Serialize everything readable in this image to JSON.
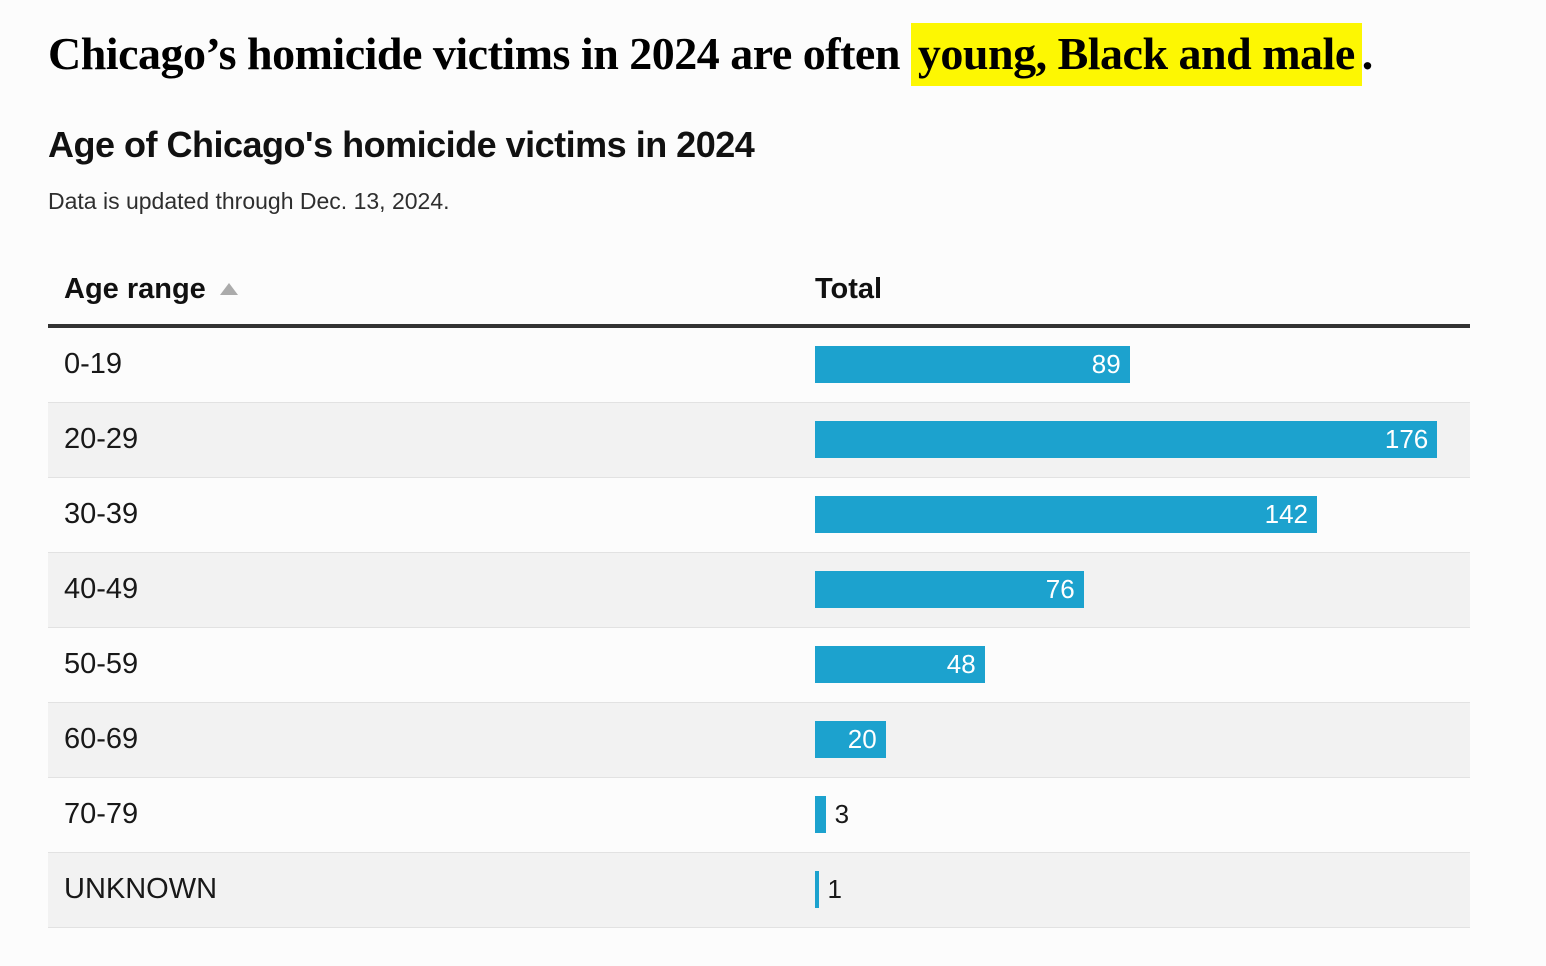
{
  "headline": {
    "prefix": "Chicago’s homicide victims in 2024 are often ",
    "highlight": "young, Black and male",
    "suffix": "."
  },
  "chart": {
    "title": "Age of Chicago's homicide victims in 2024",
    "subtitle": "Data is updated through Dec. 13, 2024.",
    "columns": {
      "age_label": "Age range",
      "total_label": "Total",
      "sort_state": "ascending"
    }
  },
  "icons": {
    "sort_ascending": "triangle-up"
  },
  "chart_data": {
    "type": "bar",
    "orientation": "horizontal",
    "title": "Age of Chicago's homicide victims in 2024",
    "subtitle": "Data is updated through Dec. 13, 2024.",
    "xlabel": "Total",
    "ylabel": "Age range",
    "categories": [
      "0-19",
      "20-29",
      "30-39",
      "40-49",
      "50-59",
      "60-69",
      "70-79",
      "UNKNOWN"
    ],
    "values": [
      89,
      176,
      142,
      76,
      48,
      20,
      3,
      1
    ],
    "xlim": [
      0,
      185
    ],
    "grid": false,
    "legend": false,
    "value_labels": "end-of-bar"
  },
  "colors": {
    "bar_color": "#1ca2ce",
    "highlight_color": "#fdf702",
    "row_alt": "#f2f2f2",
    "header_rule": "#333333",
    "sort_icon": "#ababab"
  }
}
